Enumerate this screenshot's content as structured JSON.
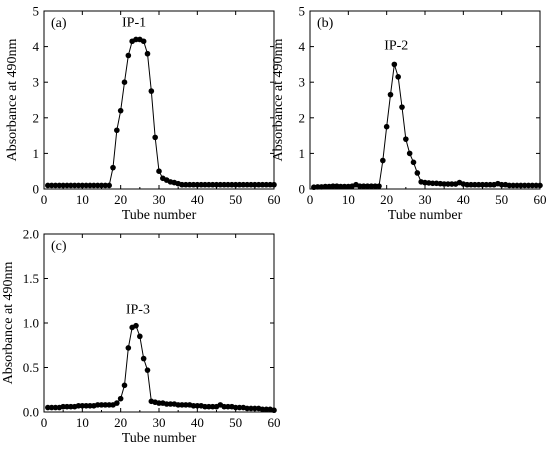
{
  "chart_data": [
    {
      "type": "line",
      "panel_label": "(a)",
      "peak_label": "IP-1",
      "xlabel": "Tube number",
      "ylabel": "Absorbance at 490nm",
      "xlim": [
        0,
        60
      ],
      "ylim": [
        0,
        5
      ],
      "xticks": [
        0,
        10,
        20,
        30,
        40,
        50,
        60
      ],
      "yticks": [
        0,
        1,
        2,
        3,
        4,
        5
      ],
      "x": [
        1,
        2,
        3,
        4,
        5,
        6,
        7,
        8,
        9,
        10,
        11,
        12,
        13,
        14,
        15,
        16,
        17,
        18,
        19,
        20,
        21,
        22,
        23,
        24,
        25,
        26,
        27,
        28,
        29,
        30,
        31,
        32,
        33,
        34,
        35,
        36,
        37,
        38,
        39,
        40,
        41,
        42,
        43,
        44,
        45,
        46,
        47,
        48,
        49,
        50,
        51,
        52,
        53,
        54,
        55,
        56,
        57,
        58,
        59,
        60
      ],
      "y": [
        0.1,
        0.1,
        0.1,
        0.1,
        0.1,
        0.1,
        0.1,
        0.1,
        0.1,
        0.1,
        0.1,
        0.1,
        0.1,
        0.1,
        0.1,
        0.1,
        0.1,
        0.6,
        1.65,
        2.2,
        3.0,
        3.75,
        4.15,
        4.2,
        4.2,
        4.15,
        3.8,
        2.75,
        1.45,
        0.5,
        0.3,
        0.25,
        0.2,
        0.18,
        0.15,
        0.12,
        0.12,
        0.12,
        0.12,
        0.12,
        0.12,
        0.12,
        0.12,
        0.12,
        0.12,
        0.12,
        0.12,
        0.12,
        0.12,
        0.12,
        0.12,
        0.12,
        0.12,
        0.12,
        0.12,
        0.12,
        0.12,
        0.12,
        0.12,
        0.12
      ]
    },
    {
      "type": "line",
      "panel_label": "(b)",
      "peak_label": "IP-2",
      "xlabel": "Tube number",
      "ylabel": "Absorbance at 490nm",
      "xlim": [
        0,
        60
      ],
      "ylim": [
        0,
        5
      ],
      "xticks": [
        0,
        10,
        20,
        30,
        40,
        50,
        60
      ],
      "yticks": [
        0,
        1,
        2,
        3,
        4,
        5
      ],
      "x": [
        1,
        2,
        3,
        4,
        5,
        6,
        7,
        8,
        9,
        10,
        11,
        12,
        13,
        14,
        15,
        16,
        17,
        18,
        19,
        20,
        21,
        22,
        23,
        24,
        25,
        26,
        27,
        28,
        29,
        30,
        31,
        32,
        33,
        34,
        35,
        36,
        37,
        38,
        39,
        40,
        41,
        42,
        43,
        44,
        45,
        46,
        47,
        48,
        49,
        50,
        51,
        52,
        53,
        54,
        55,
        56,
        57,
        58,
        59,
        60
      ],
      "y": [
        0.05,
        0.06,
        0.06,
        0.07,
        0.07,
        0.08,
        0.08,
        0.07,
        0.07,
        0.07,
        0.08,
        0.12,
        0.08,
        0.08,
        0.08,
        0.08,
        0.08,
        0.08,
        0.8,
        1.75,
        2.65,
        3.5,
        3.15,
        2.3,
        1.4,
        1.0,
        0.75,
        0.45,
        0.2,
        0.18,
        0.17,
        0.16,
        0.16,
        0.15,
        0.14,
        0.14,
        0.14,
        0.14,
        0.18,
        0.14,
        0.12,
        0.12,
        0.12,
        0.12,
        0.12,
        0.12,
        0.12,
        0.12,
        0.15,
        0.12,
        0.12,
        0.1,
        0.1,
        0.1,
        0.1,
        0.1,
        0.1,
        0.1,
        0.1,
        0.1
      ]
    },
    {
      "type": "line",
      "panel_label": "(c)",
      "peak_label": "IP-3",
      "xlabel": "Tube number",
      "ylabel": "Absorbance at 490nm",
      "xlim": [
        0,
        60
      ],
      "ylim": [
        0,
        2.0
      ],
      "xticks": [
        0,
        10,
        20,
        30,
        40,
        50,
        60
      ],
      "yticks": [
        0.0,
        0.5,
        1.0,
        1.5,
        2.0
      ],
      "ytick_labels": [
        "0.0",
        "0.5",
        "1.0",
        "1.5",
        "2.0"
      ],
      "x": [
        1,
        2,
        3,
        4,
        5,
        6,
        7,
        8,
        9,
        10,
        11,
        12,
        13,
        14,
        15,
        16,
        17,
        18,
        19,
        20,
        21,
        22,
        23,
        24,
        25,
        26,
        27,
        28,
        29,
        30,
        31,
        32,
        33,
        34,
        35,
        36,
        37,
        38,
        39,
        40,
        41,
        42,
        43,
        44,
        45,
        46,
        47,
        48,
        49,
        50,
        51,
        52,
        53,
        54,
        55,
        56,
        57,
        58,
        59,
        60
      ],
      "y": [
        0.05,
        0.05,
        0.05,
        0.05,
        0.06,
        0.06,
        0.06,
        0.06,
        0.07,
        0.07,
        0.07,
        0.07,
        0.07,
        0.08,
        0.08,
        0.08,
        0.08,
        0.08,
        0.1,
        0.15,
        0.3,
        0.72,
        0.95,
        0.97,
        0.85,
        0.6,
        0.47,
        0.12,
        0.11,
        0.1,
        0.1,
        0.09,
        0.09,
        0.09,
        0.08,
        0.08,
        0.08,
        0.08,
        0.07,
        0.07,
        0.07,
        0.06,
        0.06,
        0.06,
        0.06,
        0.08,
        0.06,
        0.06,
        0.06,
        0.05,
        0.05,
        0.05,
        0.04,
        0.04,
        0.04,
        0.04,
        0.03,
        0.03,
        0.03,
        0.02
      ]
    }
  ]
}
